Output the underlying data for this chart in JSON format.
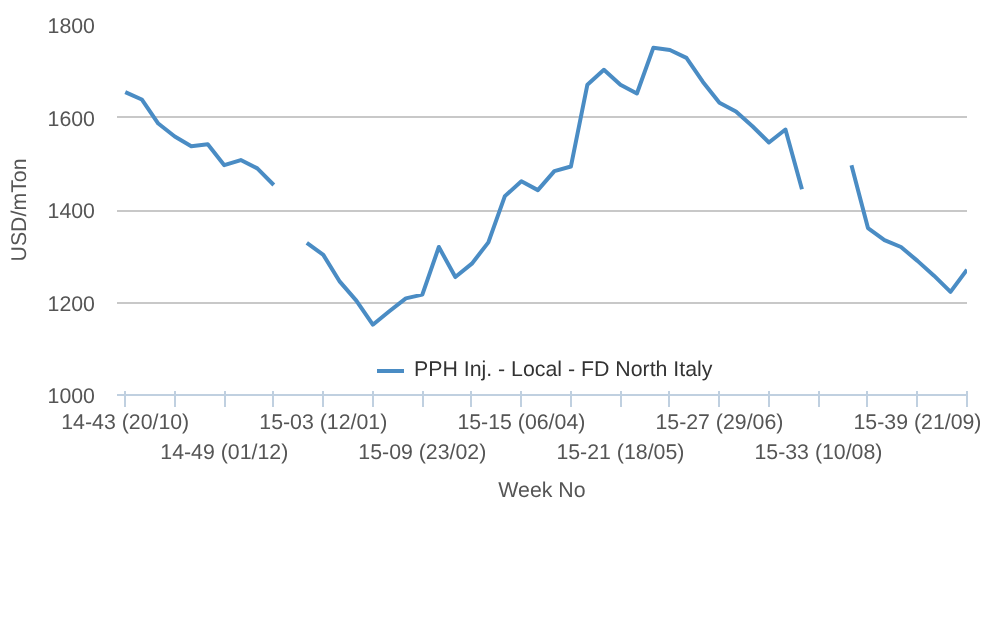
{
  "chart_data": {
    "type": "line",
    "xlabel": "Week No",
    "ylabel": "USD/mTon",
    "categories": [
      "14-43 (20/10)",
      null,
      null,
      null,
      null,
      null,
      "14-49 (01/12)",
      null,
      null,
      null,
      null,
      null,
      "15-03 (12/01)",
      null,
      null,
      null,
      null,
      null,
      "15-09 (23/02)",
      null,
      null,
      null,
      null,
      null,
      "15-15 (06/04)",
      null,
      null,
      null,
      null,
      null,
      "15-21 (18/05)",
      null,
      null,
      null,
      null,
      null,
      "15-27 (29/06)",
      null,
      null,
      null,
      null,
      null,
      "15-33 (10/08)",
      null,
      null,
      null,
      null,
      null,
      "15-39 (21/09)",
      null,
      null,
      null
    ],
    "series": [
      {
        "name": "PPH Inj. - Local - FD North Italy",
        "color": "#4a8cc4",
        "values": [
          1655,
          1639,
          1587,
          1559,
          1538,
          1542,
          1497,
          1508,
          1490,
          1454,
          null,
          1329,
          1303,
          1245,
          1204,
          1152,
          1181,
          1209,
          1217,
          1320,
          1255,
          1284,
          1330,
          1430,
          1462,
          1443,
          1484,
          1494,
          1671,
          1703,
          1671,
          1652,
          1751,
          1746,
          1729,
          1677,
          1632,
          1613,
          1581,
          1546,
          1574,
          1445,
          null,
          null,
          1497,
          1361,
          1335,
          1320,
          1290,
          1258,
          1223,
          1271
        ]
      }
    ],
    "ylim": [
      1000,
      1800
    ],
    "yticks": [
      1000,
      1200,
      1400,
      1600,
      1800
    ],
    "grid": "y",
    "legend": "bottom",
    "marker": "none",
    "line_style": "solid"
  }
}
